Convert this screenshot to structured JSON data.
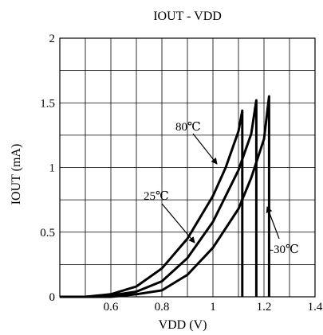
{
  "chart_data": {
    "type": "line",
    "title": "IOUT - VDD",
    "xlabel": "VDD (V)",
    "ylabel": "IOUT (mA)",
    "xlim": [
      0.4,
      1.4
    ],
    "ylim": [
      0,
      2
    ],
    "xticks": [
      0.6,
      0.8,
      1,
      1.2,
      1.4
    ],
    "xtick_labels": [
      "0.6",
      "0.8",
      "1",
      "1.2",
      "1.4"
    ],
    "yticks": [
      0,
      0.5,
      1,
      1.5,
      2
    ],
    "ytick_labels": [
      "0",
      "0.5",
      "1",
      "1.5",
      "2"
    ],
    "x_minor_grid": [
      0.5,
      0.7,
      0.9,
      1.1,
      1.3
    ],
    "y_minor_grid": [
      0.25,
      0.75,
      1.25,
      1.75
    ],
    "grid": true,
    "series": [
      {
        "name": "80℃",
        "points": [
          [
            0.5,
            0.0
          ],
          [
            0.6,
            0.02
          ],
          [
            0.7,
            0.08
          ],
          [
            0.8,
            0.22
          ],
          [
            0.9,
            0.45
          ],
          [
            1.0,
            0.78
          ],
          [
            1.05,
            1.0
          ],
          [
            1.1,
            1.28
          ],
          [
            1.115,
            1.44
          ],
          [
            1.115,
            0.0
          ]
        ]
      },
      {
        "name": "25℃",
        "points": [
          [
            0.5,
            0.0
          ],
          [
            0.6,
            0.01
          ],
          [
            0.7,
            0.04
          ],
          [
            0.8,
            0.12
          ],
          [
            0.9,
            0.3
          ],
          [
            1.0,
            0.58
          ],
          [
            1.1,
            0.98
          ],
          [
            1.15,
            1.26
          ],
          [
            1.17,
            1.52
          ],
          [
            1.17,
            0.0
          ]
        ]
      },
      {
        "name": "-30℃",
        "points": [
          [
            0.4,
            0.0
          ],
          [
            0.6,
            0.0
          ],
          [
            0.7,
            0.02
          ],
          [
            0.8,
            0.05
          ],
          [
            0.9,
            0.17
          ],
          [
            1.0,
            0.38
          ],
          [
            1.1,
            0.68
          ],
          [
            1.15,
            0.92
          ],
          [
            1.2,
            1.22
          ],
          [
            1.22,
            1.55
          ],
          [
            1.22,
            0.0
          ]
        ]
      }
    ],
    "annotations": [
      {
        "text": "80℃",
        "target_series": "80℃"
      },
      {
        "text": "25℃",
        "target_series": "25℃"
      },
      {
        "text": "-30℃",
        "target_series": "-30℃"
      }
    ]
  }
}
